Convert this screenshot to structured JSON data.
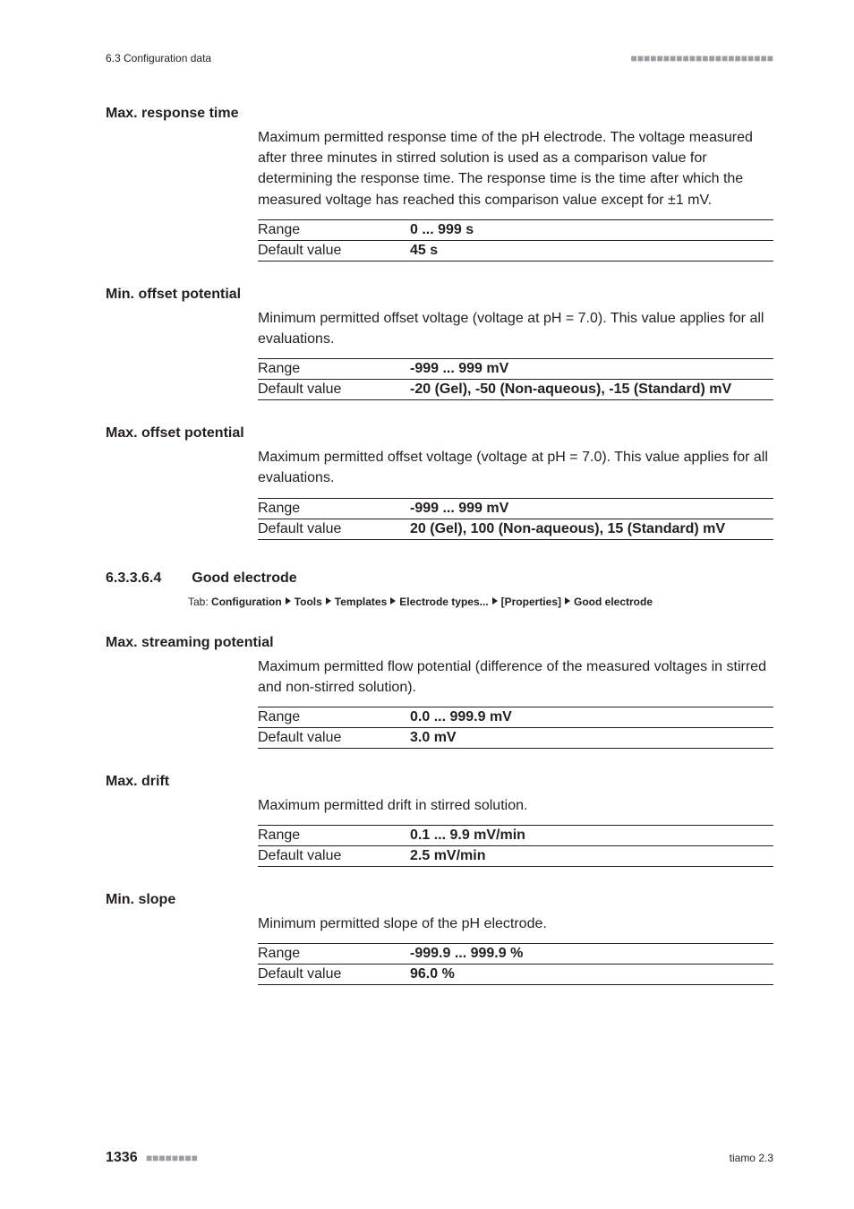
{
  "runningHead": {
    "left": "6.3 Configuration data"
  },
  "sections": [
    {
      "term": "Max. response time",
      "def": "Maximum permitted response time of the pH electrode. The voltage measured after three minutes in stirred solution is used as a comparison value for determining the response time. The response time is the time after which the measured voltage has reached this comparison value except for ±1 mV.",
      "rangeLabel": "Range",
      "rangeValue": "0 ... 999 s",
      "defaultLabel": "Default value",
      "defaultValue": "45 s"
    },
    {
      "term": "Min. offset potential",
      "def": "Minimum permitted offset voltage (voltage at pH = 7.0). This value applies for all evaluations.",
      "rangeLabel": "Range",
      "rangeValue": "-999 ... 999 mV",
      "defaultLabel": "Default value",
      "defaultValue": "-20 (Gel), -50 (Non-aqueous), -15 (Standard) mV"
    },
    {
      "term": "Max. offset potential",
      "def": "Maximum permitted offset voltage (voltage at pH = 7.0). This value applies for all evaluations.",
      "rangeLabel": "Range",
      "rangeValue": "-999 ... 999 mV",
      "defaultLabel": "Default value",
      "defaultValue": "20 (Gel), 100 (Non-aqueous), 15 (Standard) mV"
    }
  ],
  "subheading": {
    "num": "6.3.3.6.4",
    "title": "Good electrode"
  },
  "tab": {
    "prefix": "Tab:",
    "parts": [
      "Configuration",
      "Tools",
      "Templates",
      "Electrode types...",
      "[Properties]",
      "Good electrode"
    ]
  },
  "sections2": [
    {
      "term": "Max. streaming potential",
      "def": "Maximum permitted flow potential (difference of the measured voltages in stirred and non-stirred solution).",
      "rangeLabel": "Range",
      "rangeValue": "0.0 ... 999.9 mV",
      "defaultLabel": "Default value",
      "defaultValue": "3.0 mV"
    },
    {
      "term": "Max. drift",
      "def": "Maximum permitted drift in stirred solution.",
      "rangeLabel": "Range",
      "rangeValue": "0.1 ... 9.9 mV/min",
      "defaultLabel": "Default value",
      "defaultValue": "2.5 mV/min"
    },
    {
      "term": "Min. slope",
      "def": "Minimum permitted slope of the pH electrode.",
      "rangeLabel": "Range",
      "rangeValue": "-999.9 ... 999.9 %",
      "defaultLabel": "Default value",
      "defaultValue": "96.0 %"
    }
  ],
  "footer": {
    "page": "1336",
    "right": "tiamo 2.3"
  }
}
